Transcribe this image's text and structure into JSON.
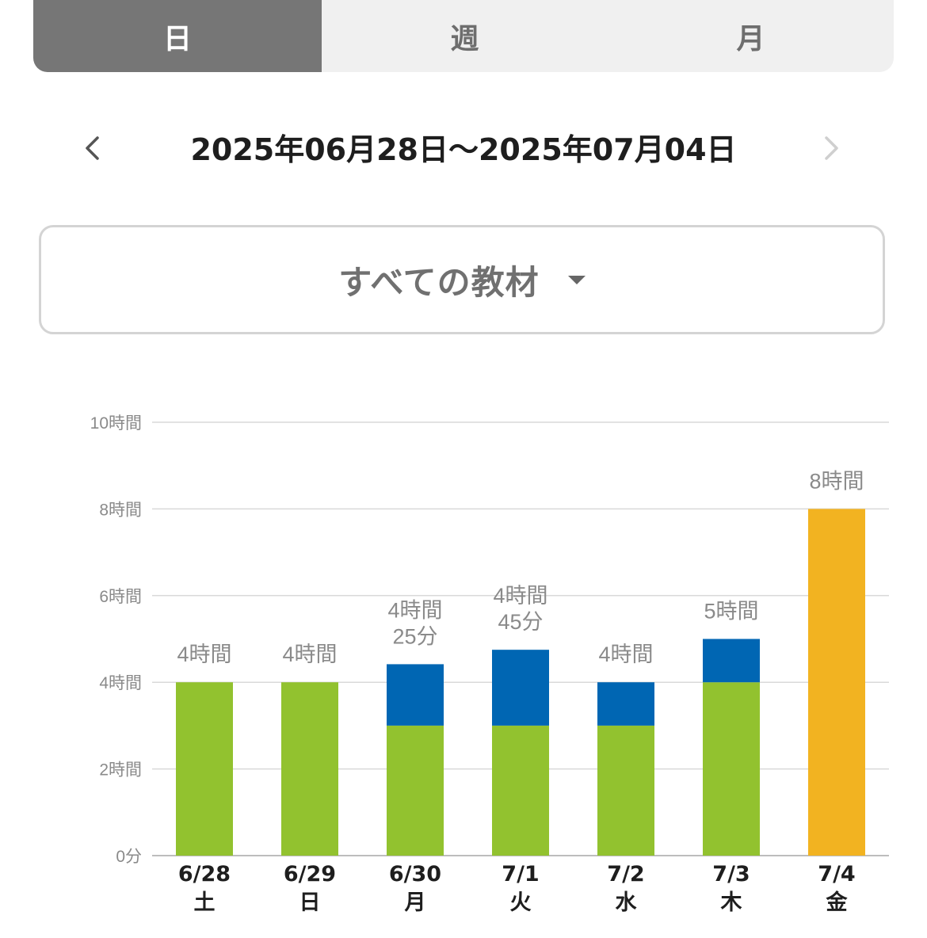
{
  "tabs": [
    {
      "label": "日",
      "active": true
    },
    {
      "label": "週",
      "active": false
    },
    {
      "label": "月",
      "active": false
    }
  ],
  "range": {
    "label": "2025年06月28日～2025年07月04日",
    "prev_icon": "chevron-left-icon",
    "next_icon": "chevron-right-icon"
  },
  "filter": {
    "label": "すべての教材",
    "icon": "caret-down-icon"
  },
  "colors": {
    "green": "#92c22f",
    "blue": "#0066b3",
    "orange": "#f2b321",
    "grid": "#d9d9d9",
    "axis": "#bdbdbd"
  },
  "chart_data": {
    "type": "bar",
    "stacked": true,
    "unit": "hours",
    "ylim": [
      0,
      10
    ],
    "yticks": [
      {
        "value": 0,
        "label": "0分"
      },
      {
        "value": 2,
        "label": "2時間"
      },
      {
        "value": 4,
        "label": "4時間"
      },
      {
        "value": 6,
        "label": "6時間"
      },
      {
        "value": 8,
        "label": "8時間"
      },
      {
        "value": 10,
        "label": "10時間"
      }
    ],
    "categories": [
      {
        "date": "6/28",
        "weekday": "土"
      },
      {
        "date": "6/29",
        "weekday": "日"
      },
      {
        "date": "6/30",
        "weekday": "月"
      },
      {
        "date": "7/1",
        "weekday": "火"
      },
      {
        "date": "7/2",
        "weekday": "水"
      },
      {
        "date": "7/3",
        "weekday": "木"
      },
      {
        "date": "7/4",
        "weekday": "金"
      }
    ],
    "series": [
      {
        "color": "#92c22f",
        "values": [
          4,
          4,
          3,
          3,
          3,
          4,
          0
        ]
      },
      {
        "color": "#0066b3",
        "values": [
          0,
          0,
          1.4167,
          1.75,
          1,
          1,
          0
        ]
      },
      {
        "color": "#f2b321",
        "values": [
          0,
          0,
          0,
          0,
          0,
          0,
          8
        ]
      }
    ],
    "totals": [
      [
        "4時間"
      ],
      [
        "4時間"
      ],
      [
        "4時間",
        "25分"
      ],
      [
        "4時間",
        "45分"
      ],
      [
        "4時間"
      ],
      [
        "5時間"
      ],
      [
        "8時間"
      ]
    ],
    "grid": true
  }
}
